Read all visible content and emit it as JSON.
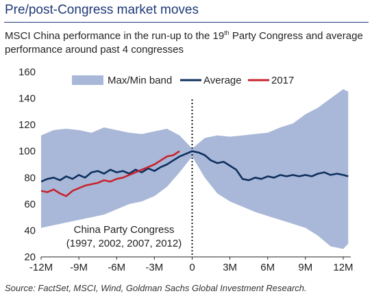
{
  "header": {
    "title": "Pre/post-Congress market moves",
    "subtitle_part1": "MSCI China performance in the run-up to the 19",
    "subtitle_sup": "th",
    "subtitle_part2": " Party Congress and average performance around past 4 congresses"
  },
  "source": "Source: FactSet, MSCI, Wind, Goldman Sachs Global Investment Research.",
  "colors": {
    "band": "#a9b8d8",
    "average": "#0d2f5e",
    "y2017": "#c8232c",
    "vline": "#111111"
  },
  "chart_data": {
    "type": "line",
    "x_unit": "months relative to congress",
    "xlim": [
      -12,
      12.6
    ],
    "ylim": [
      20,
      160
    ],
    "x_ticks": [
      -12,
      -9,
      -6,
      -3,
      0,
      3,
      6,
      9,
      12
    ],
    "x_tick_labels": [
      "-12M",
      "-9M",
      "-6M",
      "-3M",
      "0",
      "3M",
      "6M",
      "9M",
      "12M"
    ],
    "y_ticks": [
      20,
      40,
      60,
      80,
      100,
      120,
      140,
      160
    ],
    "legend": [
      "Max/Min band",
      "Average",
      "2017"
    ],
    "annotation": [
      "China Party Congress",
      "(1997, 2002, 2007, 2012)"
    ],
    "vertical_line_x": 0,
    "band": {
      "x": [
        -12,
        -11,
        -10,
        -9,
        -8,
        -7,
        -6,
        -5,
        -4,
        -3,
        -2,
        -1,
        0,
        1,
        2,
        3,
        4,
        5,
        6,
        7,
        8,
        9,
        10,
        11,
        12,
        12.4
      ],
      "upper": [
        112,
        116,
        117,
        116,
        114,
        118,
        116,
        114,
        113,
        115,
        117,
        112,
        102,
        110,
        112,
        111,
        112,
        113,
        114,
        118,
        121,
        128,
        133,
        140,
        147,
        145
      ],
      "lower": [
        42,
        44,
        46,
        48,
        50,
        52,
        56,
        60,
        62,
        66,
        73,
        84,
        96,
        80,
        68,
        62,
        58,
        54,
        51,
        48,
        45,
        42,
        36,
        28,
        26,
        30
      ]
    },
    "series": [
      {
        "name": "Average",
        "x": [
          -12,
          -11.5,
          -11,
          -10.5,
          -10,
          -9.5,
          -9,
          -8.5,
          -8,
          -7.5,
          -7,
          -6.5,
          -6,
          -5.5,
          -5,
          -4.5,
          -4,
          -3.5,
          -3,
          -2.5,
          -2,
          -1.5,
          -1,
          -0.5,
          0,
          0.5,
          1,
          1.5,
          2,
          2.5,
          3,
          3.5,
          4,
          4.5,
          5,
          5.5,
          6,
          6.5,
          7,
          7.5,
          8,
          8.5,
          9,
          9.5,
          10,
          10.5,
          11,
          11.5,
          12,
          12.4
        ],
        "values": [
          77,
          79,
          80,
          78,
          81,
          79,
          82,
          80,
          84,
          85,
          83,
          86,
          84,
          85,
          83,
          86,
          84,
          87,
          85,
          88,
          90,
          93,
          96,
          98,
          100,
          99,
          97,
          93,
          91,
          92,
          89,
          86,
          79,
          78,
          80,
          79,
          81,
          80,
          82,
          81,
          82,
          81,
          82,
          81,
          83,
          84,
          82,
          83,
          82,
          81
        ]
      },
      {
        "name": "2017",
        "x": [
          -12,
          -11.5,
          -11,
          -10.5,
          -10,
          -9.5,
          -9,
          -8.5,
          -8,
          -7.5,
          -7,
          -6.5,
          -6,
          -5.5,
          -5,
          -4.5,
          -4,
          -3.5,
          -3,
          -2.5,
          -2,
          -1.5,
          -1
        ],
        "values": [
          70,
          69,
          71,
          68,
          66,
          70,
          72,
          74,
          75,
          76,
          78,
          77,
          79,
          80,
          82,
          84,
          86,
          88,
          90,
          93,
          96,
          97,
          100
        ]
      }
    ]
  }
}
